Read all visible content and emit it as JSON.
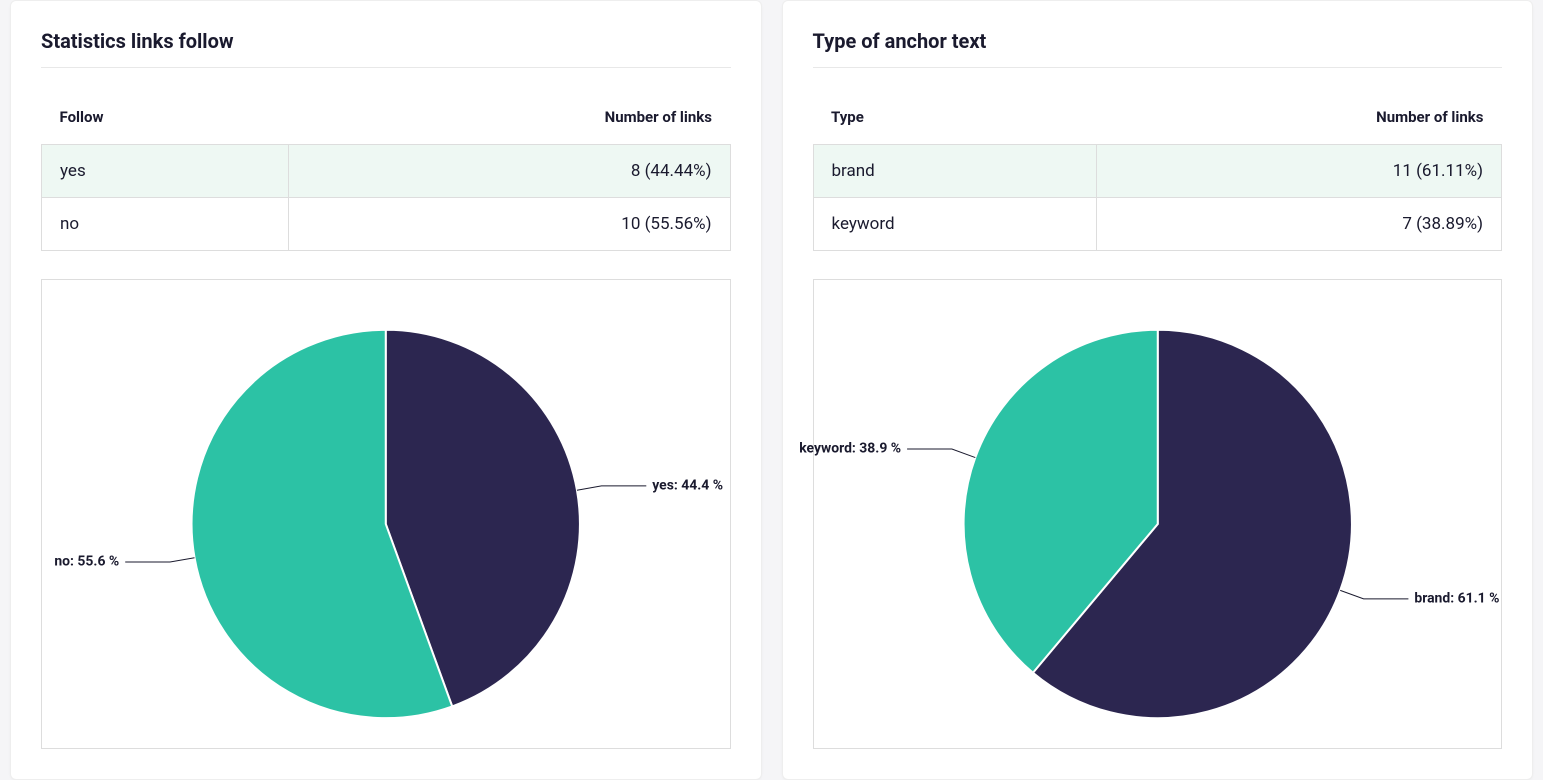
{
  "colors": {
    "teal": "#2cc2a5",
    "navy": "#2c2650",
    "text": "#1a1a2e",
    "panel_bg": "#ffffff",
    "body_bg": "#f5f5f7",
    "border": "#dddddd",
    "hl_row_bg": "#eef8f3"
  },
  "left": {
    "title": "Statistics links follow",
    "col1": "Follow",
    "col2": "Number of links",
    "rows": [
      {
        "label": "yes",
        "value": "8 (44.44%)",
        "hl": true
      },
      {
        "label": "no",
        "value": "10 (55.56%)",
        "hl": false
      }
    ],
    "chart": {
      "type": "pie",
      "slices": [
        {
          "key": "yes",
          "percent": 44.44,
          "color": "#2c2650",
          "label": "yes: 44.4 %"
        },
        {
          "key": "no",
          "percent": 55.56,
          "color": "#2cc2a5",
          "label": "no: 55.6 %"
        }
      ],
      "radius": 195,
      "label_fontsize": 14,
      "label_fontweight": 700,
      "slice_stroke": "#ffffff",
      "slice_stroke_width": 2
    }
  },
  "right": {
    "title": "Type of anchor text",
    "col1": "Type",
    "col2": "Number of links",
    "rows": [
      {
        "label": "brand",
        "value": "11 (61.11%)",
        "hl": true
      },
      {
        "label": "keyword",
        "value": "7 (38.89%)",
        "hl": false
      }
    ],
    "chart": {
      "type": "pie",
      "slices": [
        {
          "key": "brand",
          "percent": 61.11,
          "color": "#2c2650",
          "label": "brand: 61.1 %"
        },
        {
          "key": "keyword",
          "percent": 38.89,
          "color": "#2cc2a5",
          "label": "keyword: 38.9 %"
        }
      ],
      "radius": 195,
      "label_fontsize": 14,
      "label_fontweight": 700,
      "slice_stroke": "#ffffff",
      "slice_stroke_width": 2
    }
  }
}
